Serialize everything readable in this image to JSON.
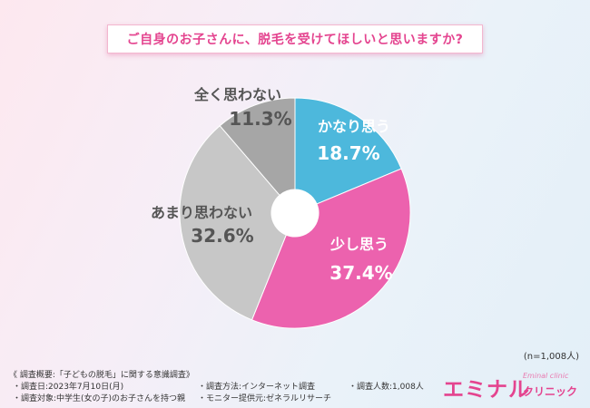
{
  "title": "ご自身のお子さんに、脱毛を受けてほしいと思いますか?",
  "chart_data": {
    "type": "pie",
    "style": "donut",
    "start": "12 o'clock, clockwise",
    "series": [
      {
        "label": "かなり思う",
        "value": 18.7,
        "display": "18.7%",
        "color": "#4db8dc",
        "label_color": "#ffffff"
      },
      {
        "label": "少し思う",
        "value": 37.4,
        "display": "37.4%",
        "color": "#ec62ae",
        "label_color": "#ffffff"
      },
      {
        "label": "あまり思わない",
        "value": 32.6,
        "display": "32.6%",
        "color": "#c7c7c7",
        "label_color": "#555555"
      },
      {
        "label": "全く思わない",
        "value": 11.3,
        "display": "11.3%",
        "color": "#a6a6a6",
        "label_color": "#555555"
      }
    ]
  },
  "sample_note": "(n=1,008人)",
  "footer": {
    "heading": "《 調査概要:「子どもの脱毛」に関する意識調査》",
    "items": [
      "・調査日:2023年7月10日(月)",
      "・調査対象:中学生(女の子)のお子さんを持つ親",
      "・調査方法:インターネット調査",
      "・モニター提供元:ゼネラルリサーチ",
      "・調査人数:1,008人"
    ]
  },
  "brand": {
    "main": "エミナル",
    "clinic": "クリニック",
    "sub": "Eminal clinic"
  }
}
